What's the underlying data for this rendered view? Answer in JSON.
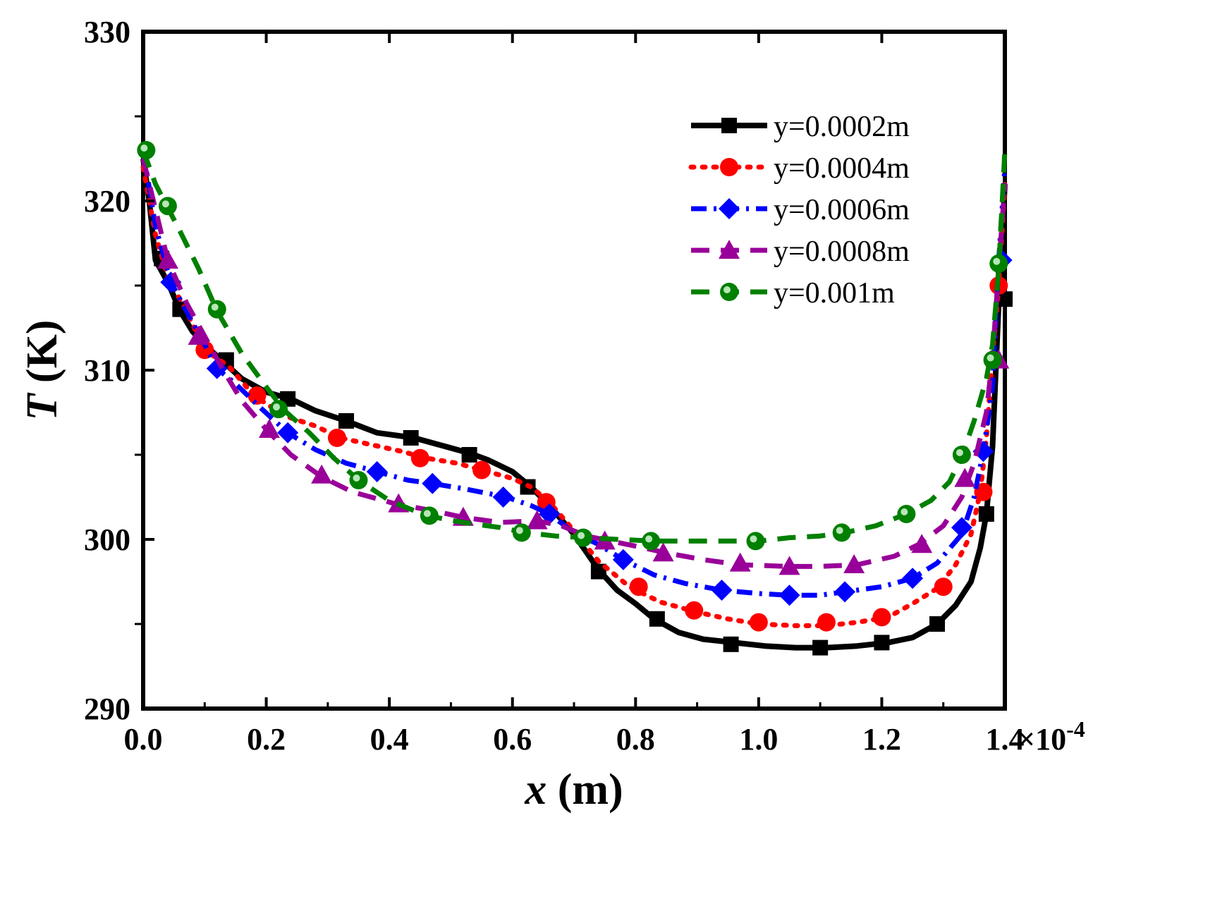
{
  "chart_data": {
    "type": "line",
    "xlabel_var": "x",
    "xlabel_unit": " (m)",
    "ylabel_var": "T",
    "ylabel_unit": " (K)",
    "xlim": [
      0,
      1.4
    ],
    "ylim": [
      290,
      330
    ],
    "x_multiplier_label": "×10",
    "x_multiplier_exp": "-4",
    "x_ticks": [
      0.0,
      0.2,
      0.4,
      0.6,
      0.8,
      1.0,
      1.2,
      1.4
    ],
    "x_tick_labels": [
      "0.0",
      "0.2",
      "0.4",
      "0.6",
      "0.8",
      "1.0",
      "1.2",
      "1.4"
    ],
    "y_ticks": [
      290,
      300,
      310,
      320,
      330
    ],
    "y_tick_labels": [
      "290",
      "300",
      "310",
      "320",
      "330"
    ],
    "legend_position": "top-right",
    "series": [
      {
        "name": "y=0.0002m",
        "color": "#000000",
        "marker": "square",
        "dash": "solid",
        "x": [
          0.0,
          0.01,
          0.02,
          0.04,
          0.06,
          0.08,
          0.1,
          0.13,
          0.16,
          0.2,
          0.24,
          0.28,
          0.33,
          0.38,
          0.44,
          0.48,
          0.53,
          0.56,
          0.6,
          0.63,
          0.66,
          0.7,
          0.74,
          0.77,
          0.8,
          0.83,
          0.87,
          0.91,
          0.96,
          1.01,
          1.06,
          1.11,
          1.16,
          1.21,
          1.25,
          1.29,
          1.32,
          1.345,
          1.36,
          1.37,
          1.38,
          1.39,
          1.4
        ],
        "y": [
          322.5,
          320.0,
          316.5,
          315.2,
          313.5,
          312.3,
          311.5,
          310.5,
          309.5,
          308.7,
          308.3,
          307.6,
          307.0,
          306.3,
          306.0,
          305.6,
          305.1,
          304.7,
          304.0,
          303.1,
          302.0,
          300.3,
          298.2,
          297.0,
          296.2,
          295.3,
          294.5,
          294.1,
          293.9,
          293.7,
          293.6,
          293.6,
          293.7,
          293.9,
          294.2,
          295.0,
          296.1,
          297.5,
          299.5,
          301.5,
          305.5,
          314.0,
          321.0
        ],
        "marker_x": [
          0.03,
          0.06,
          0.135,
          0.235,
          0.33,
          0.435,
          0.53,
          0.625,
          0.74,
          0.835,
          0.955,
          1.1,
          1.2,
          1.29,
          1.37,
          1.4
        ],
        "marker_y": [
          316.6,
          313.6,
          310.6,
          308.3,
          307.0,
          306.0,
          305.0,
          303.1,
          298.1,
          295.3,
          293.8,
          293.6,
          293.9,
          295.0,
          301.5,
          314.2
        ]
      },
      {
        "name": "y=0.0004m",
        "color": "#ff0000",
        "marker": "circle",
        "dash": "dotted",
        "x": [
          0.0,
          0.02,
          0.04,
          0.07,
          0.1,
          0.14,
          0.18,
          0.23,
          0.28,
          0.32,
          0.37,
          0.42,
          0.46,
          0.51,
          0.55,
          0.6,
          0.63,
          0.66,
          0.7,
          0.74,
          0.79,
          0.84,
          0.9,
          0.95,
          1.0,
          1.06,
          1.11,
          1.16,
          1.21,
          1.25,
          1.29,
          1.32,
          1.345,
          1.36,
          1.37,
          1.38,
          1.39,
          1.4
        ],
        "y": [
          322.0,
          318.0,
          315.5,
          313.5,
          311.2,
          310.2,
          308.5,
          307.3,
          306.7,
          306.0,
          305.6,
          305.2,
          304.8,
          304.5,
          304.1,
          303.6,
          303.1,
          302.2,
          300.5,
          298.7,
          297.2,
          296.3,
          295.7,
          295.3,
          295.0,
          294.9,
          294.9,
          295.1,
          295.4,
          296.2,
          297.1,
          298.5,
          300.3,
          302.8,
          306.0,
          310.8,
          315.0,
          321.0
        ],
        "marker_x": [
          0.1,
          0.185,
          0.315,
          0.45,
          0.55,
          0.655,
          0.805,
          0.895,
          1.0,
          1.11,
          1.2,
          1.3,
          1.365,
          1.39
        ],
        "marker_y": [
          311.2,
          308.5,
          306.0,
          304.8,
          304.1,
          302.2,
          297.2,
          295.8,
          295.1,
          295.1,
          295.4,
          297.2,
          302.8,
          315.0
        ]
      },
      {
        "name": "y=0.0006m",
        "color": "#0000ff",
        "marker": "diamond",
        "dash": "dashdot",
        "x": [
          0.0,
          0.02,
          0.045,
          0.07,
          0.1,
          0.12,
          0.15,
          0.19,
          0.235,
          0.28,
          0.33,
          0.38,
          0.43,
          0.47,
          0.52,
          0.59,
          0.63,
          0.66,
          0.7,
          0.74,
          0.78,
          0.83,
          0.88,
          0.94,
          1.0,
          1.05,
          1.1,
          1.14,
          1.2,
          1.25,
          1.29,
          1.33,
          1.35,
          1.365,
          1.38,
          1.39,
          1.4
        ],
        "y": [
          323.0,
          318.5,
          315.2,
          313.5,
          311.5,
          310.1,
          309.2,
          307.8,
          306.3,
          305.3,
          304.5,
          304.0,
          303.5,
          303.3,
          303.0,
          302.5,
          302.0,
          301.5,
          300.4,
          299.7,
          298.8,
          297.9,
          297.4,
          297.0,
          296.8,
          296.7,
          296.7,
          296.9,
          297.2,
          297.7,
          298.6,
          300.3,
          302.5,
          305.2,
          309.0,
          316.5,
          322.0
        ],
        "marker_x": [
          0.045,
          0.12,
          0.235,
          0.38,
          0.47,
          0.585,
          0.66,
          0.78,
          0.94,
          1.05,
          1.14,
          1.25,
          1.33,
          1.365,
          1.395
        ],
        "marker_y": [
          315.2,
          310.1,
          306.3,
          304.0,
          303.3,
          302.5,
          301.5,
          298.8,
          297.0,
          296.7,
          296.9,
          297.7,
          300.7,
          305.2,
          316.5
        ]
      },
      {
        "name": "y=0.0008m",
        "color": "#990099",
        "marker": "triangle",
        "dash": "dashed",
        "x": [
          0.0,
          0.02,
          0.04,
          0.07,
          0.1,
          0.13,
          0.16,
          0.2,
          0.24,
          0.29,
          0.34,
          0.41,
          0.47,
          0.52,
          0.58,
          0.64,
          0.68,
          0.72,
          0.76,
          0.8,
          0.85,
          0.91,
          0.97,
          1.05,
          1.1,
          1.16,
          1.22,
          1.26,
          1.3,
          1.33,
          1.35,
          1.37,
          1.38,
          1.39,
          1.4
        ],
        "y": [
          322.5,
          319.5,
          316.5,
          314.0,
          312.0,
          310.0,
          308.2,
          306.5,
          305.0,
          303.7,
          302.8,
          302.1,
          301.7,
          301.3,
          301.0,
          301.1,
          300.8,
          300.2,
          299.9,
          299.6,
          299.2,
          298.8,
          298.5,
          298.4,
          298.4,
          298.5,
          299.0,
          299.7,
          300.8,
          302.5,
          304.5,
          307.5,
          310.8,
          316.0,
          321.0
        ],
        "marker_x": [
          0.04,
          0.09,
          0.205,
          0.29,
          0.415,
          0.52,
          0.64,
          0.75,
          0.845,
          0.97,
          1.05,
          1.155,
          1.265,
          1.335,
          1.39
        ],
        "marker_y": [
          316.5,
          312.0,
          306.5,
          303.8,
          302.1,
          301.3,
          301.1,
          299.9,
          299.2,
          298.6,
          298.4,
          298.5,
          299.7,
          303.6,
          310.6
        ]
      },
      {
        "name": "y=0.001m",
        "color": "#008000",
        "marker": "circle-dot",
        "dash": "dashed",
        "x": [
          0.0,
          0.02,
          0.04,
          0.06,
          0.09,
          0.12,
          0.16,
          0.2,
          0.23,
          0.27,
          0.31,
          0.35,
          0.4,
          0.46,
          0.52,
          0.58,
          0.62,
          0.67,
          0.72,
          0.77,
          0.83,
          0.89,
          0.95,
          1.0,
          1.05,
          1.1,
          1.14,
          1.19,
          1.24,
          1.28,
          1.31,
          1.33,
          1.35,
          1.37,
          1.38,
          1.39,
          1.4
        ],
        "y": [
          323.0,
          321.0,
          319.6,
          318.2,
          316.0,
          313.5,
          311.0,
          309.0,
          307.6,
          306.3,
          304.8,
          303.5,
          302.3,
          301.4,
          301.0,
          300.7,
          300.4,
          300.2,
          300.1,
          300.0,
          299.9,
          299.9,
          299.9,
          299.9,
          300.1,
          300.2,
          300.4,
          300.8,
          301.5,
          302.3,
          303.4,
          304.9,
          307.0,
          309.5,
          311.5,
          316.0,
          323.0
        ],
        "marker_x": [
          0.005,
          0.04,
          0.12,
          0.22,
          0.35,
          0.465,
          0.615,
          0.715,
          0.825,
          0.995,
          1.135,
          1.24,
          1.33,
          1.38,
          1.39
        ],
        "marker_y": [
          323.0,
          319.7,
          313.6,
          307.7,
          303.5,
          301.4,
          300.4,
          300.1,
          299.9,
          299.9,
          300.4,
          301.5,
          305.0,
          310.6,
          316.3
        ]
      }
    ]
  }
}
